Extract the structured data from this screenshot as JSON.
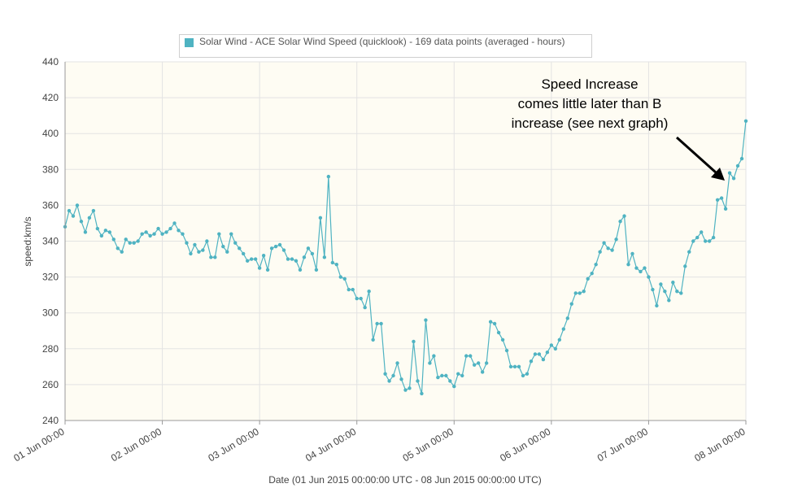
{
  "legend": {
    "label": "Solar Wind - ACE Solar Wind Speed (quicklook) - 169 data points (averaged - hours)",
    "color": "#4fb3c2"
  },
  "annotation": {
    "lines": [
      "Speed Increase",
      "comes little later than B",
      "increase (see next graph)"
    ],
    "color": "#000000"
  },
  "chart_data": {
    "type": "line",
    "title": "",
    "xlabel": "Date (01 Jun 2015 00:00:00 UTC - 08 Jun 2015 00:00:00 UTC)",
    "ylabel": "speed:km/s",
    "ylim": [
      240,
      440
    ],
    "yticks": [
      240,
      260,
      280,
      300,
      320,
      340,
      360,
      380,
      400,
      420,
      440
    ],
    "xlim_hours": [
      0,
      168
    ],
    "xtick_labels": [
      "01 Jun 00:00",
      "02 Jun 00:00",
      "03 Jun 00:00",
      "04 Jun 00:00",
      "05 Jun 00:00",
      "06 Jun 00:00",
      "07 Jun 00:00",
      "08 Jun 00:00"
    ],
    "grid": true,
    "plot_background": "#fefcf3",
    "series": [
      {
        "name": "Solar Wind - ACE Solar Wind Speed (quicklook) - 169 data points (averaged - hours)",
        "color": "#4fb3c2",
        "values": [
          348,
          357,
          354,
          360,
          351,
          345,
          353,
          357,
          347,
          343,
          346,
          345,
          341,
          336,
          334,
          341,
          339,
          339,
          340,
          344,
          345,
          343,
          344,
          347,
          344,
          345,
          347,
          350,
          346,
          344,
          339,
          333,
          338,
          334,
          335,
          340,
          331,
          331,
          344,
          337,
          334,
          344,
          339,
          336,
          333,
          329,
          330,
          330,
          325,
          332,
          324,
          336,
          337,
          338,
          335,
          330,
          330,
          329,
          324,
          331,
          336,
          333,
          324,
          353,
          331,
          376,
          328,
          327,
          320,
          319,
          313,
          313,
          308,
          308,
          303,
          312,
          285,
          294,
          294,
          266,
          262,
          265,
          272,
          263,
          257,
          258,
          284,
          262,
          255,
          296,
          272,
          276,
          264,
          265,
          265,
          262,
          259,
          266,
          265,
          276,
          276,
          271,
          272,
          267,
          272,
          295,
          294,
          289,
          285,
          279,
          270,
          270,
          270,
          265,
          266,
          273,
          277,
          277,
          274,
          278,
          282,
          280,
          285,
          291,
          297,
          305,
          311,
          311,
          312,
          319,
          322,
          327,
          334,
          339,
          336,
          335,
          341,
          351,
          354,
          327,
          333,
          325,
          323,
          325,
          320,
          313,
          304,
          316,
          312,
          307,
          317,
          312,
          311,
          326,
          334,
          340,
          342,
          345,
          340,
          340,
          342,
          363,
          364,
          358,
          378,
          375,
          382,
          386,
          407
        ]
      }
    ]
  }
}
